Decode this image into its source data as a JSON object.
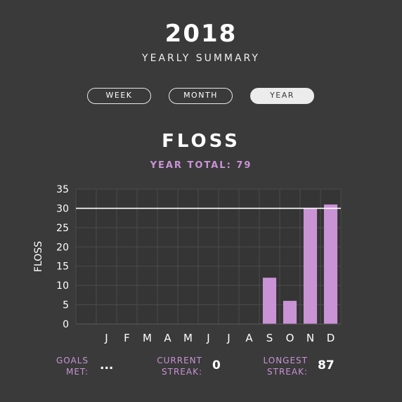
{
  "header": {
    "year": "2018",
    "subtitle": "YEARLY SUMMARY"
  },
  "period_selector": {
    "week": "WEEK",
    "month": "MONTH",
    "year": "YEAR",
    "selected": "YEAR"
  },
  "chart_header": {
    "title": "FLOSS",
    "total_text": "YEAR TOTAL: 79"
  },
  "colors": {
    "background": "#3a3a3a",
    "bar": "#c993d6",
    "accent_text": "#c993d6",
    "goal_line": "#ffffff",
    "grid": "#4c4c4c"
  },
  "chart_data": {
    "type": "bar",
    "categories": [
      "J",
      "F",
      "M",
      "A",
      "M",
      "J",
      "J",
      "A",
      "S",
      "O",
      "N",
      "D"
    ],
    "values": [
      0,
      0,
      0,
      0,
      0,
      0,
      0,
      0,
      12,
      6,
      30,
      31
    ],
    "ylabel": "FLOSS",
    "ylim": [
      0,
      35
    ],
    "yticks": [
      0,
      5,
      10,
      15,
      20,
      25,
      30,
      35
    ],
    "goal_line": 30,
    "grid": true
  },
  "stats": {
    "goals_met_label_1": "GOALS",
    "goals_met_label_2": "MET:",
    "goals_met_value": "...",
    "current_streak_label_1": "CURRENT",
    "current_streak_label_2": "STREAK:",
    "current_streak_value": "0",
    "longest_streak_label_1": "LONGEST",
    "longest_streak_label_2": "STREAK:",
    "longest_streak_value": "87"
  }
}
